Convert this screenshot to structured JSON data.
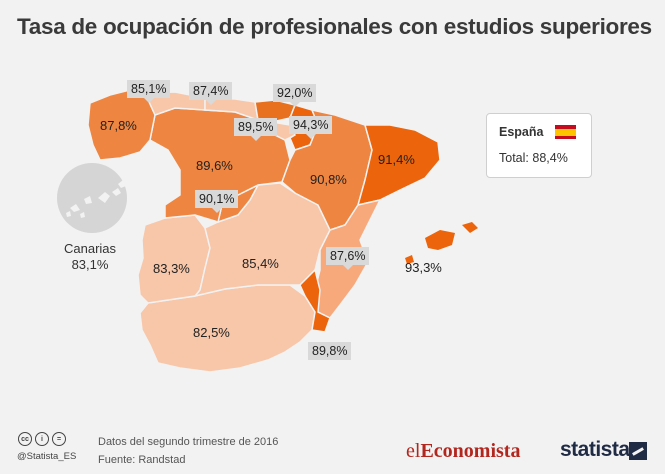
{
  "title": "Tasa de ocupación de profesionales con estudios superiores",
  "legend": {
    "country": "España",
    "total_label": "Total:",
    "total_value": "88,4%"
  },
  "colors": {
    "lightest": "#f8c6a8",
    "light": "#f7a97c",
    "medium": "#ee8540",
    "dark": "#e8711f",
    "darkest": "#ec640c",
    "callout_bg": "#d9d9d9",
    "background": "#f2f2f2"
  },
  "regions": [
    {
      "name": "Galicia",
      "value": "87,8%"
    },
    {
      "name": "Asturias",
      "value": "85,1%"
    },
    {
      "name": "Cantabria",
      "value": "87,4%"
    },
    {
      "name": "País Vasco",
      "value": "92,0%"
    },
    {
      "name": "La Rioja",
      "value": "89,5%"
    },
    {
      "name": "Navarra",
      "value": "94,3%"
    },
    {
      "name": "Castilla y León",
      "value": "89,6%"
    },
    {
      "name": "Aragón",
      "value": "90,8%"
    },
    {
      "name": "Cataluña",
      "value": "91,4%"
    },
    {
      "name": "Madrid",
      "value": "90,1%"
    },
    {
      "name": "Extremadura",
      "value": "83,3%"
    },
    {
      "name": "Castilla-La Mancha",
      "value": "85,4%"
    },
    {
      "name": "C. Valenciana",
      "value": "87,6%"
    },
    {
      "name": "Baleares",
      "value": "93,3%"
    },
    {
      "name": "Andalucía",
      "value": "82,5%"
    },
    {
      "name": "Murcia",
      "value": "89,8%"
    }
  ],
  "canarias": {
    "label": "Canarias",
    "value": "83,1%"
  },
  "footer": {
    "handle": "@Statista_ES",
    "note_line1": "Datos del segundo trimestre de 2016",
    "note_line2": "Fuente: Randstad",
    "brand1_a": "el",
    "brand1_b": "Economista",
    "brand2": "statista",
    "icons": [
      "cc-icon",
      "by-icon",
      "nd-icon"
    ]
  }
}
